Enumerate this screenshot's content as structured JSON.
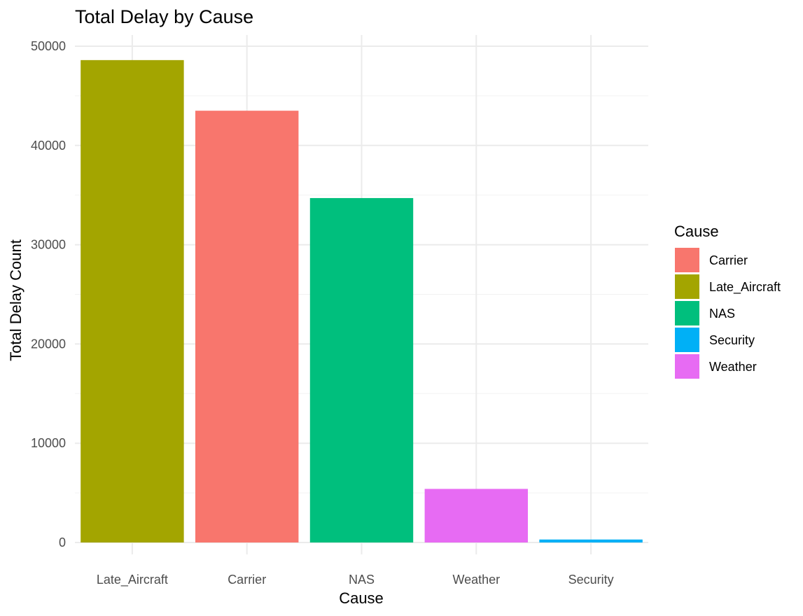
{
  "chart_data": {
    "type": "bar",
    "title": "Total Delay by Cause",
    "xlabel": "Cause",
    "ylabel": "Total Delay Count",
    "categories": [
      "Late_Aircraft",
      "Carrier",
      "NAS",
      "Weather",
      "Security"
    ],
    "values": [
      48600,
      43500,
      34700,
      5400,
      300
    ],
    "bar_colors": [
      "#A3A500",
      "#F8766D",
      "#00BF7D",
      "#E76BF3",
      "#00B0F6"
    ],
    "ylim": [
      0,
      51000
    ],
    "yticks": [
      0,
      10000,
      20000,
      30000,
      40000,
      50000
    ],
    "ytick_labels": [
      "0",
      "10000",
      "20000",
      "30000",
      "40000",
      "50000"
    ],
    "grid": true,
    "legend": {
      "title": "Cause",
      "position": "right",
      "entries": [
        {
          "label": "Carrier",
          "color": "#F8766D"
        },
        {
          "label": "Late_Aircraft",
          "color": "#A3A500"
        },
        {
          "label": "NAS",
          "color": "#00BF7D"
        },
        {
          "label": "Security",
          "color": "#00B0F6"
        },
        {
          "label": "Weather",
          "color": "#E76BF3"
        }
      ]
    }
  }
}
